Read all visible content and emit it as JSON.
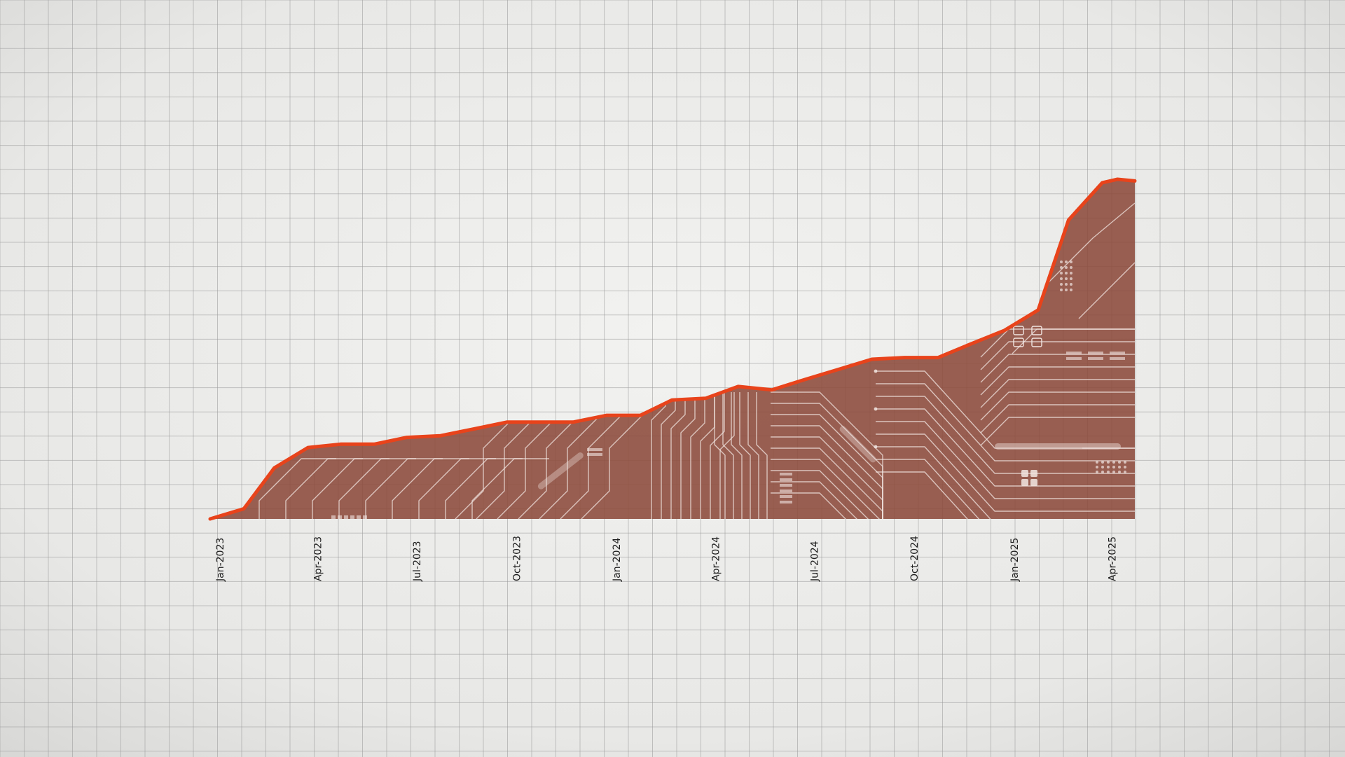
{
  "chart_data": {
    "type": "area",
    "title": "",
    "xlabel": "",
    "ylabel": "",
    "x_ticks": [
      "Jan-2023",
      "Apr-2023",
      "Jul-2023",
      "Oct-2023",
      "Jan-2024",
      "Apr-2024",
      "Jul-2024",
      "Oct-2024",
      "Jan-2025",
      "Apr-2025"
    ],
    "y_axis_visible": false,
    "grid": true,
    "ylim": [
      0,
      100
    ],
    "series": [
      {
        "points": [
          {
            "x": "2023-01-01",
            "y": 0
          },
          {
            "x": "2023-02-01",
            "y": 3
          },
          {
            "x": "2023-03-01",
            "y": 15
          },
          {
            "x": "2023-04-01",
            "y": 21
          },
          {
            "x": "2023-05-01",
            "y": 22
          },
          {
            "x": "2023-06-01",
            "y": 22
          },
          {
            "x": "2023-07-01",
            "y": 24
          },
          {
            "x": "2023-08-01",
            "y": 24.5
          },
          {
            "x": "2023-09-01",
            "y": 26.5
          },
          {
            "x": "2023-10-01",
            "y": 28.5
          },
          {
            "x": "2023-11-01",
            "y": 28.5
          },
          {
            "x": "2023-12-01",
            "y": 28.5
          },
          {
            "x": "2024-01-01",
            "y": 30.5
          },
          {
            "x": "2024-02-01",
            "y": 30.5
          },
          {
            "x": "2024-03-01",
            "y": 35
          },
          {
            "x": "2024-04-01",
            "y": 35.5
          },
          {
            "x": "2024-05-01",
            "y": 39
          },
          {
            "x": "2024-06-01",
            "y": 38
          },
          {
            "x": "2024-07-01",
            "y": 41
          },
          {
            "x": "2024-08-01",
            "y": 44
          },
          {
            "x": "2024-09-01",
            "y": 47
          },
          {
            "x": "2024-10-01",
            "y": 47.5
          },
          {
            "x": "2024-11-01",
            "y": 47.5
          },
          {
            "x": "2024-12-01",
            "y": 51.5
          },
          {
            "x": "2025-01-01",
            "y": 55.5
          },
          {
            "x": "2025-02-01",
            "y": 61.5
          },
          {
            "x": "2025-03-01",
            "y": 88
          },
          {
            "x": "2025-04-01",
            "y": 99
          },
          {
            "x": "2025-04-15",
            "y": 100
          },
          {
            "x": "2025-05-01",
            "y": 99.5
          }
        ]
      }
    ]
  },
  "colors": {
    "background": "#e9e9e7",
    "grid_line": "#9a9a9a",
    "area_fill": "#8c4a3b",
    "line": "#e8431b",
    "circuit": "#f1e6e2"
  }
}
